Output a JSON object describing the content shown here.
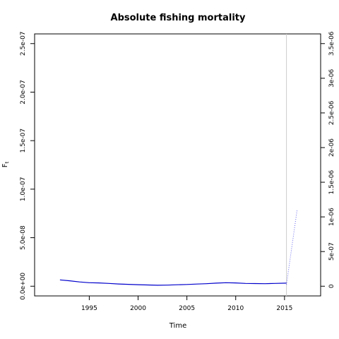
{
  "chart_data": {
    "type": "line",
    "title": "Absolute fishing mortality",
    "xlabel": "Time",
    "ylabel_main": "F",
    "ylabel_sub": "t",
    "xlim": [
      1989.4,
      2018.7
    ],
    "ylim_left": [
      -1e-08,
      2.6e-07
    ],
    "ylim_right": [
      -1.4e-07,
      3.64e-06
    ],
    "x_ticks": [
      1995,
      2000,
      2005,
      2010,
      2015
    ],
    "x_tick_labels": [
      "1995",
      "2000",
      "2005",
      "2010",
      "2015"
    ],
    "y_left_ticks": [
      0,
      5e-08,
      1e-07,
      1.5e-07,
      2e-07,
      2.5e-07
    ],
    "y_left_tick_labels": [
      "0.0e+00",
      "5.0e-08",
      "1.0e-07",
      "1.5e-07",
      "2.0e-07",
      "2.5e-07"
    ],
    "y_right_ticks": [
      0,
      5e-07,
      1e-06,
      1.5e-06,
      2e-06,
      2.5e-06,
      3e-06,
      3.5e-06
    ],
    "y_right_tick_labels": [
      "0",
      "5e-07",
      "1e-06",
      "1.5e-06",
      "2e-06",
      "2.5e-06",
      "3e-06",
      "3.5e-06"
    ],
    "vline_x": 2015.2,
    "series": [
      {
        "style": "solid",
        "color": "#0000cc",
        "axis": "left",
        "x": [
          1992,
          1993,
          1994,
          1995,
          1996,
          1997,
          1998,
          1999,
          2000,
          2001,
          2002,
          2003,
          2004,
          2005,
          2006,
          2007,
          2008,
          2009,
          2010,
          2011,
          2012,
          2013,
          2014,
          2015.2
        ],
        "values": [
          6.5e-09,
          5.6e-09,
          4.4e-09,
          3.6e-09,
          3.4e-09,
          2.9e-09,
          2.3e-09,
          1.9e-09,
          1.6e-09,
          1.3e-09,
          1e-09,
          1.1e-09,
          1.5e-09,
          1.8e-09,
          2.2e-09,
          2.6e-09,
          3.2e-09,
          3.6e-09,
          3.4e-09,
          2.9e-09,
          2.7e-09,
          2.6e-09,
          2.9e-09,
          3.2e-09
        ]
      },
      {
        "style": "dotted",
        "color": "#6666ee",
        "axis": "right",
        "x": [
          2015.2,
          2016.3
        ],
        "values": [
          2.2e-08,
          1.11e-06
        ]
      }
    ],
    "vline_color": "#cccccc"
  }
}
